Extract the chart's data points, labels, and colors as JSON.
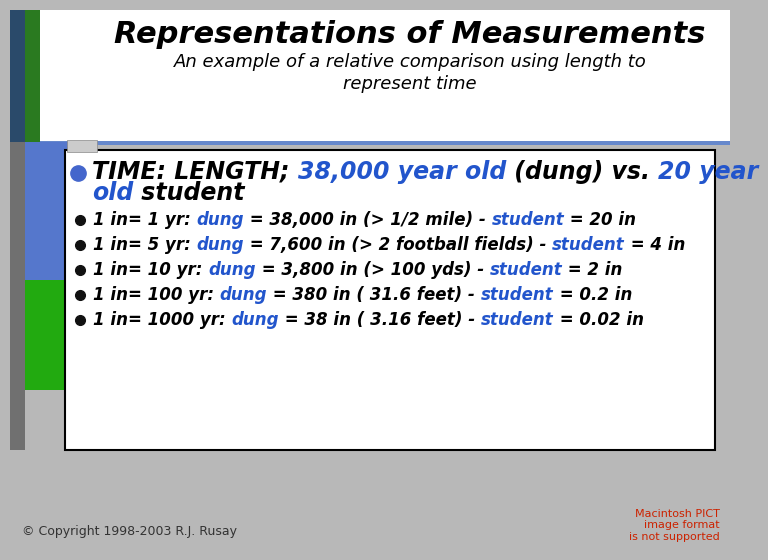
{
  "title": "Representations of Measurements",
  "subtitle": "An example of a relative comparison using length to\nrepresent time",
  "background_color": "#b8b8b8",
  "header_bg_color": "#ffffff",
  "blue_bar_color": "#3a6abf",
  "green_bar_color": "#2a9a20",
  "box_bg_color": "#ffffff",
  "box_border_color": "#000000",
  "blue_text_color": "#2255cc",
  "black_color": "#000000",
  "copyright_text": "© Copyright 1998-2003 R.J. Rusay",
  "pict_text": "Macintosh PICT\nimage format\nis not supported",
  "pict_color": "#cc2200",
  "header_line1": [
    {
      "text": "TIME: LENGTH; ",
      "color": "#000000",
      "style": "italic",
      "weight": "bold",
      "size": 17
    },
    {
      "text": "38,000 year old",
      "color": "#2255cc",
      "style": "italic",
      "weight": "bold",
      "size": 17
    },
    {
      "text": " (dung) vs. ",
      "color": "#000000",
      "style": "italic",
      "weight": "bold",
      "size": 17
    },
    {
      "text": "20 year",
      "color": "#2255cc",
      "style": "italic",
      "weight": "bold",
      "size": 17
    }
  ],
  "header_line2": [
    {
      "text": "old",
      "color": "#2255cc",
      "style": "italic",
      "weight": "bold",
      "size": 17
    },
    {
      "text": " student",
      "color": "#000000",
      "style": "italic",
      "weight": "bold",
      "size": 17
    }
  ],
  "bullets": [
    [
      {
        "text": "1 in= 1 yr: ",
        "color": "#000000",
        "style": "italic",
        "weight": "bold",
        "size": 12
      },
      {
        "text": "dung",
        "color": "#2255cc",
        "style": "italic",
        "weight": "bold",
        "size": 12
      },
      {
        "text": " = 38,000 in (> 1/2 mile) - ",
        "color": "#000000",
        "style": "italic",
        "weight": "bold",
        "size": 12
      },
      {
        "text": "student",
        "color": "#2255cc",
        "style": "italic",
        "weight": "bold",
        "size": 12
      },
      {
        "text": " = 20 in",
        "color": "#000000",
        "style": "italic",
        "weight": "bold",
        "size": 12
      }
    ],
    [
      {
        "text": "1 in= 5 yr: ",
        "color": "#000000",
        "style": "italic",
        "weight": "bold",
        "size": 12
      },
      {
        "text": "dung",
        "color": "#2255cc",
        "style": "italic",
        "weight": "bold",
        "size": 12
      },
      {
        "text": " = 7,600 in (> 2 football fields) - ",
        "color": "#000000",
        "style": "italic",
        "weight": "bold",
        "size": 12
      },
      {
        "text": "student",
        "color": "#2255cc",
        "style": "italic",
        "weight": "bold",
        "size": 12
      },
      {
        "text": " = 4 in",
        "color": "#000000",
        "style": "italic",
        "weight": "bold",
        "size": 12
      }
    ],
    [
      {
        "text": "1 in= 10 yr: ",
        "color": "#000000",
        "style": "italic",
        "weight": "bold",
        "size": 12
      },
      {
        "text": "dung",
        "color": "#2255cc",
        "style": "italic",
        "weight": "bold",
        "size": 12
      },
      {
        "text": " = 3,800 in (> 100 yds) - ",
        "color": "#000000",
        "style": "italic",
        "weight": "bold",
        "size": 12
      },
      {
        "text": "student",
        "color": "#2255cc",
        "style": "italic",
        "weight": "bold",
        "size": 12
      },
      {
        "text": " = 2 in",
        "color": "#000000",
        "style": "italic",
        "weight": "bold",
        "size": 12
      }
    ],
    [
      {
        "text": "1 in= 100 yr: ",
        "color": "#000000",
        "style": "italic",
        "weight": "bold",
        "size": 12
      },
      {
        "text": "dung",
        "color": "#2255cc",
        "style": "italic",
        "weight": "bold",
        "size": 12
      },
      {
        "text": " = 380 in ( 31.6 feet) - ",
        "color": "#000000",
        "style": "italic",
        "weight": "bold",
        "size": 12
      },
      {
        "text": "student",
        "color": "#2255cc",
        "style": "italic",
        "weight": "bold",
        "size": 12
      },
      {
        "text": " = 0.2 in",
        "color": "#000000",
        "style": "italic",
        "weight": "bold",
        "size": 12
      }
    ],
    [
      {
        "text": "1 in= 1000 yr: ",
        "color": "#000000",
        "style": "italic",
        "weight": "bold",
        "size": 12
      },
      {
        "text": "dung",
        "color": "#2255cc",
        "style": "italic",
        "weight": "bold",
        "size": 12
      },
      {
        "text": " = 38 in ( 3.16 feet) - ",
        "color": "#000000",
        "style": "italic",
        "weight": "bold",
        "size": 12
      },
      {
        "text": "student",
        "color": "#2255cc",
        "style": "italic",
        "weight": "bold",
        "size": 12
      },
      {
        "text": " = 0.02 in",
        "color": "#000000",
        "style": "italic",
        "weight": "bold",
        "size": 12
      }
    ]
  ]
}
